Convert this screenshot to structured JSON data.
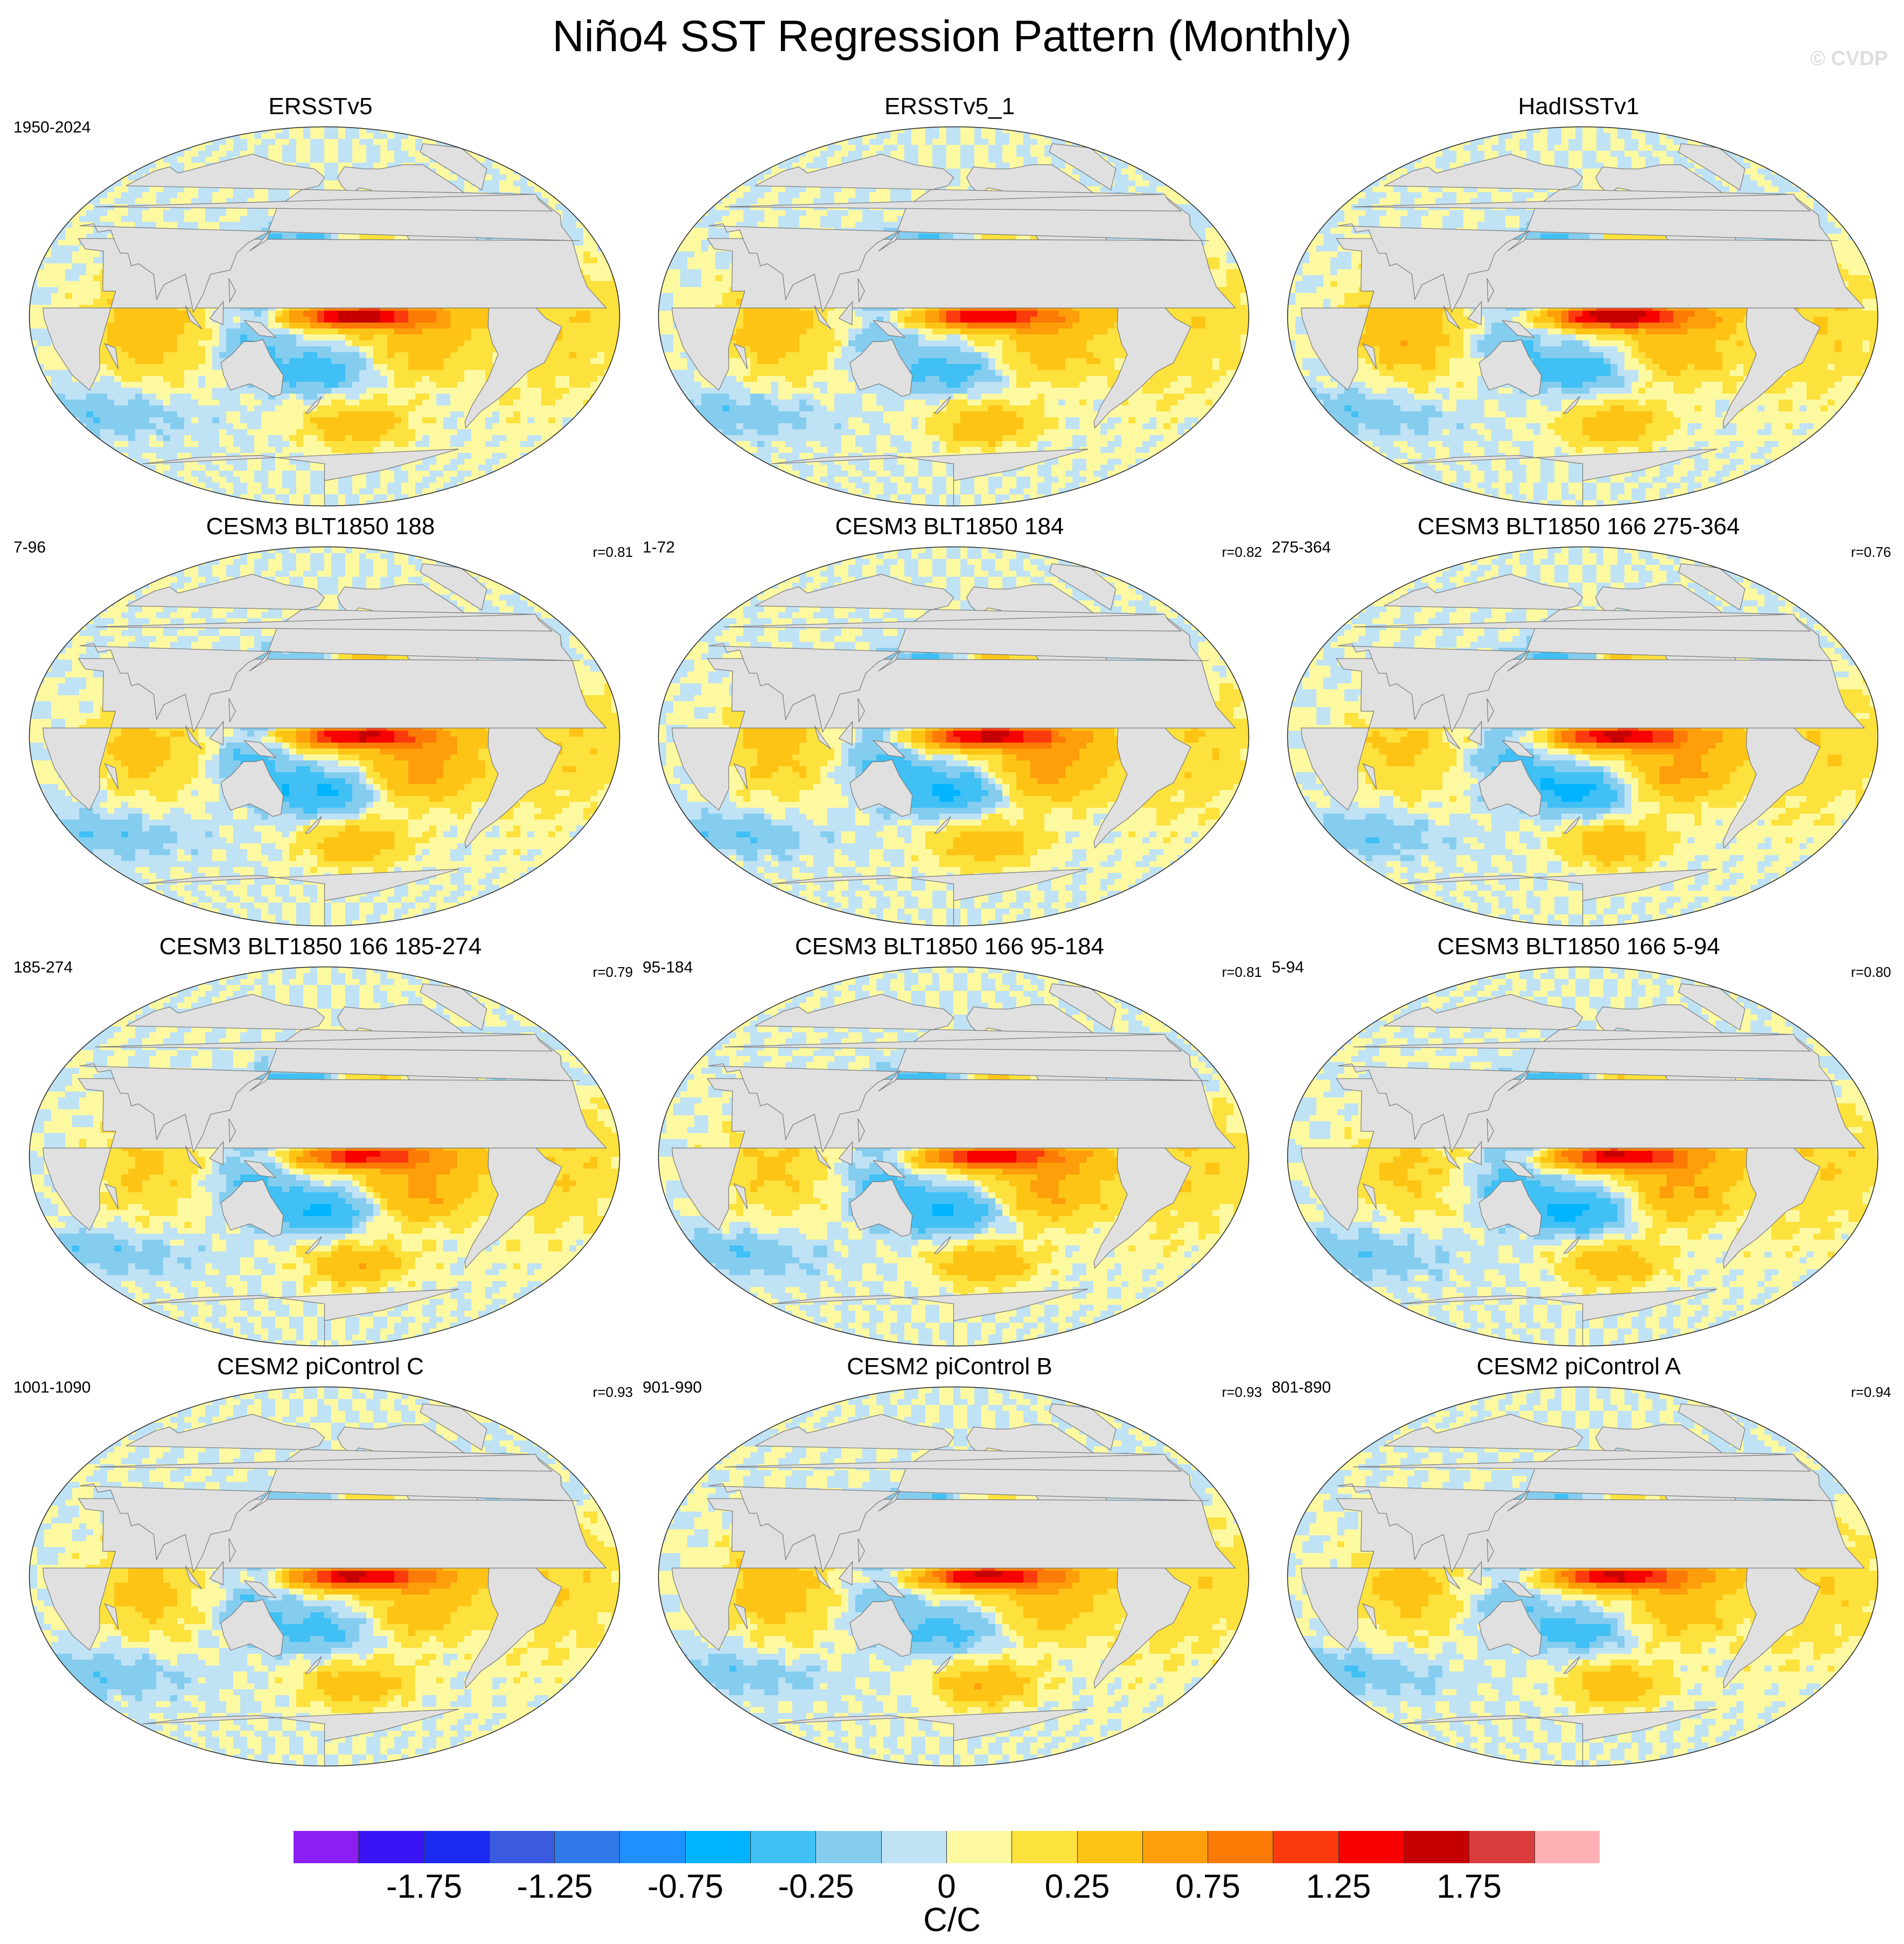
{
  "title": "Niño4 SST Regression Pattern (Monthly)",
  "watermark": "© CVDP",
  "panels": [
    {
      "title": "ERSSTv5",
      "left_label": "1950-2024",
      "right_label": "",
      "eq_peak": 1.4,
      "tp": 0.4,
      "np": -0.45,
      "sp": -0.4,
      "ind": 0.45
    },
    {
      "title": "ERSSTv5_1",
      "left_label": "",
      "right_label": "",
      "eq_peak": 1.25,
      "tp": 0.4,
      "np": -0.4,
      "sp": -0.35,
      "ind": 0.4
    },
    {
      "title": "HadISSTv1",
      "left_label": "",
      "right_label": "",
      "eq_peak": 1.55,
      "tp": 0.45,
      "np": -0.4,
      "sp": -0.4,
      "ind": 0.5
    },
    {
      "title": "CESM3 BLT1850 188",
      "left_label": "7-96",
      "right_label": "r=0.81",
      "eq_peak": 1.3,
      "tp": 0.65,
      "np": -0.35,
      "sp": -0.55,
      "ind": 0.35
    },
    {
      "title": "CESM3 BLT1850 184",
      "left_label": "1-72",
      "right_label": "r=0.82",
      "eq_peak": 1.35,
      "tp": 0.65,
      "np": -0.45,
      "sp": -0.55,
      "ind": 0.35
    },
    {
      "title": "CESM3 BLT1850 166 275-364",
      "left_label": "275-364",
      "right_label": "r=0.76",
      "eq_peak": 1.3,
      "tp": 0.65,
      "np": -0.55,
      "sp": -0.6,
      "ind": 0.3
    },
    {
      "title": "CESM3 BLT1850 166 185-274",
      "left_label": "185-274",
      "right_label": "r=0.79",
      "eq_peak": 1.05,
      "tp": 0.6,
      "np": -0.5,
      "sp": -0.55,
      "ind": 0.3
    },
    {
      "title": "CESM3 BLT1850 166 95-184",
      "left_label": "95-184",
      "right_label": "r=0.81",
      "eq_peak": 1.15,
      "tp": 0.6,
      "np": -0.5,
      "sp": -0.55,
      "ind": 0.3
    },
    {
      "title": "CESM3 BLT1850 166 5-94",
      "left_label": "5-94",
      "right_label": "r=0.80",
      "eq_peak": 1.25,
      "tp": 0.6,
      "np": -0.55,
      "sp": -0.6,
      "ind": 0.3
    },
    {
      "title": "CESM2 piControl C",
      "left_label": "1001-1090",
      "right_label": "r=0.93",
      "eq_peak": 1.35,
      "tp": 0.4,
      "np": -0.35,
      "sp": -0.35,
      "ind": 0.35
    },
    {
      "title": "CESM2 piControl B",
      "left_label": "901-990",
      "right_label": "r=0.93",
      "eq_peak": 1.35,
      "tp": 0.4,
      "np": -0.35,
      "sp": -0.35,
      "ind": 0.4
    },
    {
      "title": "CESM2 piControl A",
      "left_label": "801-890",
      "right_label": "r=0.94",
      "eq_peak": 1.3,
      "tp": 0.4,
      "np": -0.35,
      "sp": -0.35,
      "ind": 0.35
    }
  ],
  "colorbar": {
    "colors": [
      "#8b1ef2",
      "#3a14f5",
      "#1a2af0",
      "#3a5ae0",
      "#2f79e9",
      "#1e90ff",
      "#00b4ff",
      "#40c0f5",
      "#85cdef",
      "#bfe2f5",
      "#fdf9a1",
      "#fde13c",
      "#fdc415",
      "#fd9e0a",
      "#fc7a06",
      "#fb3b0e",
      "#f70000",
      "#c60000",
      "#da3c3c",
      "#ffb0b5"
    ],
    "ticks": [
      "-1.75",
      "-1.25",
      "-0.75",
      "-0.25",
      "0",
      "0.25",
      "0.75",
      "1.25",
      "1.75"
    ],
    "unit": "C/C"
  }
}
